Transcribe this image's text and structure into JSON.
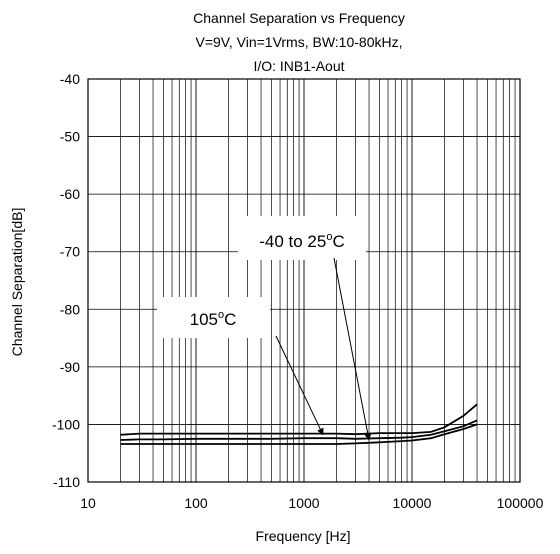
{
  "chart_data": {
    "type": "line",
    "title_lines": [
      "Channel Separation vs Frequency",
      "V=9V, Vin=1Vrms, BW:10-80kHz,",
      "I/O: INB1-Aout"
    ],
    "xlabel": "Frequency [Hz]",
    "ylabel": "Channel Separation[dB]",
    "x_scale": "log",
    "xlim": [
      10,
      100000
    ],
    "ylim": [
      -110,
      -40
    ],
    "x_ticks": [
      10,
      100,
      1000,
      10000,
      100000
    ],
    "x_tick_labels": [
      "10",
      "100",
      "1000",
      "10000",
      "100000"
    ],
    "y_ticks": [
      -110,
      -100,
      -90,
      -80,
      -70,
      -60,
      -50,
      -40
    ],
    "y_tick_labels": [
      "-110",
      "-100",
      "-90",
      "-80",
      "-70",
      "-60",
      "-50",
      "-40"
    ],
    "grid": true,
    "series": [
      {
        "x": [
          20,
          30,
          50,
          100,
          200,
          500,
          1000,
          2000,
          3000,
          5000,
          8000,
          10000,
          15000,
          20000,
          30000,
          40000
        ],
        "y": [
          -101.8,
          -101.6,
          -101.6,
          -101.6,
          -101.6,
          -101.6,
          -101.6,
          -101.6,
          -101.7,
          -101.5,
          -101.5,
          -101.5,
          -101.3,
          -100.5,
          -98.5,
          -96.5
        ]
      },
      {
        "x": [
          20,
          30,
          50,
          100,
          200,
          500,
          1000,
          2000,
          3000,
          5000,
          8000,
          10000,
          15000,
          20000,
          30000,
          40000
        ],
        "y": [
          -102.7,
          -102.6,
          -102.6,
          -102.5,
          -102.5,
          -102.5,
          -102.4,
          -102.4,
          -102.5,
          -102.4,
          -102.3,
          -102.2,
          -101.8,
          -101.2,
          -100.3,
          -99.3
        ]
      },
      {
        "x": [
          20,
          30,
          50,
          100,
          200,
          500,
          1000,
          2000,
          3000,
          5000,
          8000,
          10000,
          15000,
          20000,
          30000,
          40000
        ],
        "y": [
          -103.4,
          -103.4,
          -103.4,
          -103.4,
          -103.4,
          -103.4,
          -103.4,
          -103.4,
          -103.3,
          -103.1,
          -102.9,
          -102.8,
          -102.4,
          -101.7,
          -100.8,
          -100.0
        ]
      }
    ],
    "annotations": [
      {
        "label": "-40 to 25°C",
        "value": "-40 to 25",
        "unit_sup": "o",
        "unit_suffix": "C",
        "points_to": [
          4000,
          -102.7
        ]
      },
      {
        "label": "105°C",
        "value": "105",
        "unit_sup": "o",
        "unit_suffix": "C",
        "points_to": [
          1500,
          -101.8
        ]
      }
    ]
  }
}
